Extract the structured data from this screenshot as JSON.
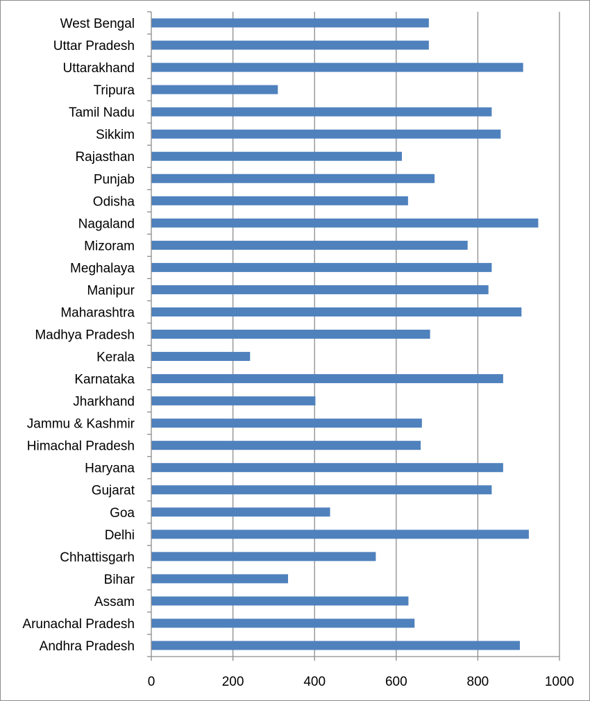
{
  "chart_data": {
    "type": "bar",
    "orientation": "horizontal",
    "title": "",
    "xlabel": "",
    "ylabel": "",
    "categories": [
      "West Bengal",
      "Uttar Pradesh",
      "Uttarakhand",
      "Tripura",
      "Tamil Nadu",
      "Sikkim",
      "Rajasthan",
      "Punjab",
      "Odisha",
      "Nagaland",
      "Mizoram",
      "Meghalaya",
      "Manipur",
      "Maharashtra",
      "Madhya Pradesh",
      "Kerala",
      "Karnataka",
      "Jharkhand",
      "Jammu & Kashmir",
      "Himachal Pradesh",
      "Haryana",
      "Gujarat",
      "Goa",
      "Delhi",
      "Chhattisgarh",
      "Bihar",
      "Assam",
      "Arunachal Pradesh",
      "Andhra Pradesh"
    ],
    "values": [
      680,
      680,
      911,
      310,
      834,
      856,
      614,
      694,
      629,
      948,
      775,
      834,
      826,
      907,
      683,
      242,
      862,
      402,
      663,
      660,
      862,
      834,
      438,
      925,
      550,
      335,
      630,
      645,
      903
    ],
    "xlim": [
      0,
      1000
    ],
    "x_ticks": [
      0,
      200,
      400,
      600,
      800,
      1000
    ],
    "x_tick_labels": [
      "0",
      "200",
      "400",
      "600",
      "800",
      "1000"
    ],
    "grid": "vertical",
    "legend": "none",
    "bar_color": "#4f81bd"
  }
}
